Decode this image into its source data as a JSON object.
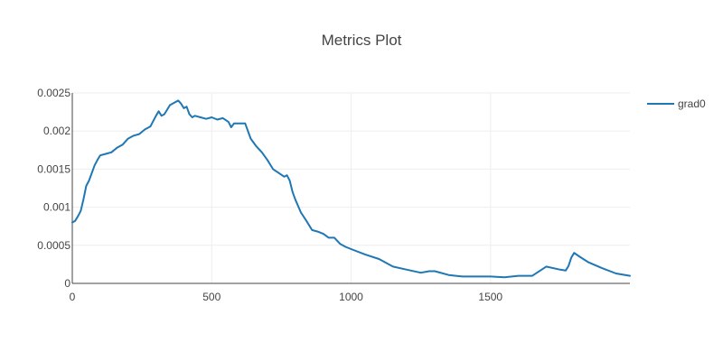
{
  "chart_data": {
    "type": "line",
    "title": "Metrics Plot",
    "xlabel": "",
    "ylabel": "",
    "xlim": [
      0,
      2000
    ],
    "ylim": [
      0,
      0.0025
    ],
    "x_ticks": [
      {
        "value": 0,
        "label": "0"
      },
      {
        "value": 500,
        "label": "500"
      },
      {
        "value": 1000,
        "label": "1000"
      },
      {
        "value": 1500,
        "label": "1500"
      }
    ],
    "y_ticks": [
      {
        "value": 0,
        "label": "0"
      },
      {
        "value": 0.0005,
        "label": "0.0005"
      },
      {
        "value": 0.001,
        "label": "0.001"
      },
      {
        "value": 0.0015,
        "label": "0.0015"
      },
      {
        "value": 0.002,
        "label": "0.002"
      },
      {
        "value": 0.0025,
        "label": "0.0025"
      }
    ],
    "grid": true,
    "legend_position": "top-right",
    "series": [
      {
        "name": "grad0",
        "color": "#1f77b4",
        "x": [
          0,
          10,
          20,
          30,
          40,
          50,
          60,
          70,
          80,
          90,
          100,
          120,
          140,
          160,
          180,
          200,
          220,
          240,
          260,
          280,
          300,
          310,
          320,
          330,
          340,
          350,
          360,
          370,
          380,
          390,
          400,
          410,
          420,
          430,
          440,
          460,
          480,
          500,
          520,
          540,
          560,
          570,
          580,
          600,
          620,
          640,
          660,
          680,
          700,
          720,
          740,
          760,
          770,
          780,
          790,
          800,
          820,
          840,
          860,
          880,
          900,
          920,
          940,
          960,
          980,
          1000,
          1050,
          1100,
          1150,
          1200,
          1250,
          1280,
          1300,
          1350,
          1400,
          1450,
          1500,
          1550,
          1600,
          1650,
          1700,
          1750,
          1770,
          1780,
          1790,
          1800,
          1820,
          1850,
          1900,
          1950,
          2000
        ],
        "values": [
          0.0008,
          0.00082,
          0.00088,
          0.00095,
          0.0011,
          0.00128,
          0.00135,
          0.00145,
          0.00155,
          0.00162,
          0.00168,
          0.0017,
          0.00172,
          0.00178,
          0.00182,
          0.0019,
          0.00194,
          0.00196,
          0.00202,
          0.00206,
          0.0022,
          0.00226,
          0.0022,
          0.00222,
          0.00228,
          0.00234,
          0.00236,
          0.00238,
          0.0024,
          0.00236,
          0.0023,
          0.00232,
          0.00222,
          0.00218,
          0.0022,
          0.00218,
          0.00216,
          0.00218,
          0.00215,
          0.00217,
          0.00212,
          0.00205,
          0.0021,
          0.0021,
          0.0021,
          0.0019,
          0.0018,
          0.00172,
          0.00162,
          0.0015,
          0.00145,
          0.0014,
          0.00142,
          0.00135,
          0.0012,
          0.0011,
          0.00093,
          0.00082,
          0.0007,
          0.00068,
          0.00065,
          0.0006,
          0.0006,
          0.00052,
          0.00048,
          0.00045,
          0.00038,
          0.00032,
          0.00022,
          0.00018,
          0.00014,
          0.00016,
          0.00016,
          0.00011,
          9e-05,
          9e-05,
          9e-05,
          8e-05,
          0.0001,
          0.0001,
          0.00022,
          0.00018,
          0.00017,
          0.00023,
          0.00034,
          0.0004,
          0.00035,
          0.00028,
          0.0002,
          0.00013,
          0.0001
        ]
      }
    ]
  }
}
